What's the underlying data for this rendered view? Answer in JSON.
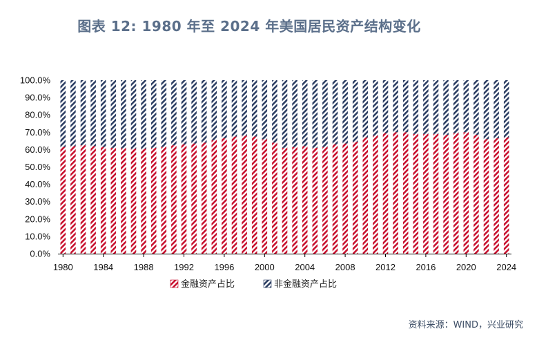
{
  "title": "图表 12: 1980 年至 2024 年美国居民资产结构变化",
  "source": "资料来源：WIND，兴业研究",
  "colors": {
    "financial": "#c8102e",
    "non_financial": "#2c3e63",
    "title": "#5b6f8a",
    "source": "#3d4e66"
  },
  "chart_data": {
    "type": "bar",
    "stacked": true,
    "categories": [
      "1980",
      "1981",
      "1982",
      "1983",
      "1984",
      "1985",
      "1986",
      "1987",
      "1988",
      "1989",
      "1990",
      "1991",
      "1992",
      "1993",
      "1994",
      "1995",
      "1996",
      "1997",
      "1998",
      "1999",
      "2000",
      "2001",
      "2002",
      "2003",
      "2004",
      "2005",
      "2006",
      "2007",
      "2008",
      "2009",
      "2010",
      "2011",
      "2012",
      "2013",
      "2014",
      "2015",
      "2016",
      "2017",
      "2018",
      "2019",
      "2020",
      "2021",
      "2022",
      "2023",
      "2024"
    ],
    "x_tick_labels": [
      "1980",
      "1984",
      "1988",
      "1992",
      "1996",
      "2000",
      "2004",
      "2008",
      "2012",
      "2016",
      "2020",
      "2024"
    ],
    "y_tick_labels": [
      "0.0%",
      "10.0%",
      "20.0%",
      "30.0%",
      "40.0%",
      "50.0%",
      "60.0%",
      "70.0%",
      "80.0%",
      "90.0%",
      "100.0%"
    ],
    "ylim": [
      0,
      100
    ],
    "legend_position": "bottom-left",
    "series": [
      {
        "name": "金融资产占比",
        "values": [
          61.5,
          62,
          62.5,
          62,
          61.5,
          61,
          60.8,
          60.5,
          60.5,
          61,
          61.5,
          62.5,
          63,
          63.5,
          64,
          65.5,
          66.5,
          67.5,
          68,
          67.5,
          66,
          64,
          61,
          61.5,
          62,
          61,
          61.5,
          63,
          63.5,
          64.5,
          67,
          68,
          69.5,
          70,
          70,
          69,
          69,
          69,
          68.5,
          69.5,
          70,
          68.5,
          66,
          66.5,
          67
        ]
      },
      {
        "name": "非金融资产占比",
        "values": [
          38.5,
          38,
          37.5,
          38,
          38.5,
          39,
          39.2,
          39.5,
          39.5,
          39,
          38.5,
          37.5,
          37,
          36.5,
          36,
          34.5,
          33.5,
          32.5,
          32,
          32.5,
          34,
          36,
          39,
          38.5,
          38,
          39,
          38.5,
          37,
          36.5,
          35.5,
          33,
          32,
          30.5,
          30,
          30,
          31,
          31,
          31,
          31.5,
          30.5,
          30,
          31.5,
          34,
          33.5,
          33
        ]
      }
    ]
  }
}
